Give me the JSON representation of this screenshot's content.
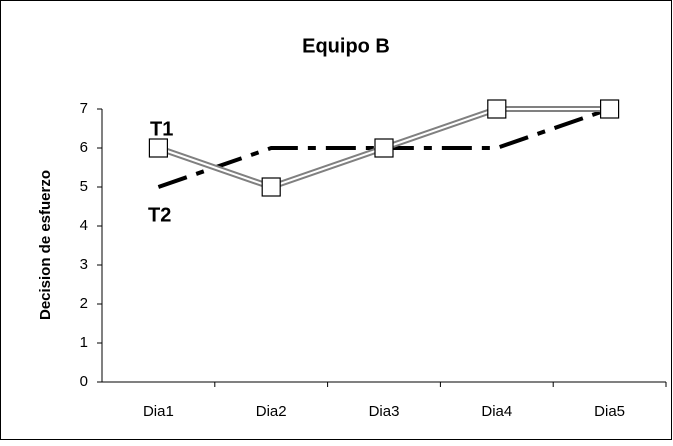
{
  "chart_data": {
    "type": "line",
    "title": "Equipo B",
    "y_label": "Decision de esfuerzo",
    "categories": [
      "Dia1",
      "Dia2",
      "Dia3",
      "Dia4",
      "Dia5"
    ],
    "series": [
      {
        "name": "T1",
        "color": "#808080",
        "values": [
          6,
          5,
          6,
          7,
          7
        ]
      },
      {
        "name": "T2",
        "color": "#000000",
        "values": [
          5,
          6,
          6,
          6,
          7
        ]
      }
    ],
    "ylim": [
      0,
      7
    ],
    "yticks": [
      0,
      1,
      2,
      3,
      4,
      5,
      6,
      7
    ],
    "grid": false
  }
}
